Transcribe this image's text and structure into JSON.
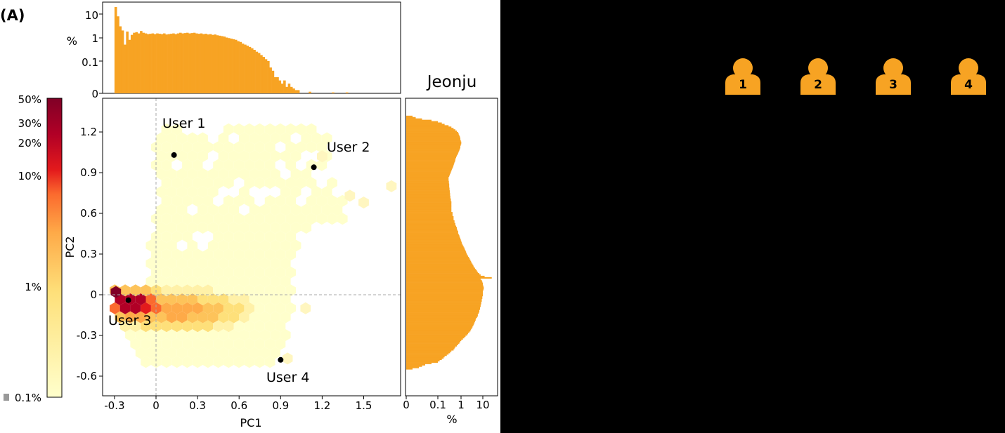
{
  "panel_label": "(A)",
  "city": "Jeonju",
  "colors": {
    "hist": "#f7a323",
    "user_icon": "#f7a323",
    "cmap": [
      "#ffffcc",
      "#fee07a",
      "#feaa48",
      "#fb6a2e",
      "#e31a1c",
      "#b10026",
      "#800026"
    ]
  },
  "icons": [
    "user-icon",
    "user-icon",
    "user-icon",
    "user-icon"
  ],
  "user_icons": [
    "1",
    "2",
    "3",
    "4"
  ],
  "chart_data": [
    {
      "type": "hexbin",
      "xlabel": "PC1",
      "ylabel": "PC2",
      "xlim": [
        -0.37,
        1.8
      ],
      "ylim": [
        -0.75,
        1.43
      ],
      "xticks": [
        "-0.3",
        "0",
        "0.3",
        "0.6",
        "0.9",
        "1.2",
        "1.5"
      ],
      "yticks": [
        "-0.6",
        "-0.3",
        "0",
        "0.3",
        "0.6",
        "0.9",
        "1.2"
      ],
      "reference_lines": {
        "x": 0,
        "y": 0
      },
      "users": [
        {
          "name": "User 1",
          "x": 0.13,
          "y": 1.03
        },
        {
          "name": "User 2",
          "x": 1.14,
          "y": 0.94
        },
        {
          "name": "User 3",
          "x": -0.2,
          "y": -0.04
        },
        {
          "name": "User 4",
          "x": 0.9,
          "y": -0.48
        }
      ],
      "colorbar": {
        "scale": "log",
        "ticks": [
          "50%",
          "30%",
          "20%",
          "10%",
          "1%",
          "0.1%"
        ]
      }
    },
    {
      "type": "histogram",
      "orientation": "vertical",
      "axis": "PC1",
      "ylabel": "%",
      "yscale": "symlog",
      "yticks": [
        "0",
        "0.1",
        "1",
        "10"
      ],
      "x_start": -0.3,
      "bin_width": 0.0167,
      "values": [
        20,
        8,
        3,
        2,
        0.5,
        1.8,
        0.8,
        1.3,
        1.6,
        1.7,
        1.5,
        1.9,
        1.6,
        1.5,
        1.4,
        1.45,
        1.5,
        1.4,
        1.5,
        1.45,
        1.4,
        1.5,
        1.35,
        1.4,
        1.45,
        1.5,
        1.4,
        1.5,
        1.6,
        1.5,
        1.55,
        1.6,
        1.5,
        1.55,
        1.6,
        1.5,
        1.45,
        1.5,
        1.4,
        1.45,
        1.35,
        1.4,
        1.3,
        1.35,
        1.25,
        1.2,
        1.15,
        1.1,
        1.0,
        0.95,
        0.9,
        0.85,
        0.8,
        0.7,
        0.65,
        0.55,
        0.5,
        0.45,
        0.4,
        0.35,
        0.3,
        0.25,
        0.22,
        0.18,
        0.15,
        0.12,
        0.1,
        0.08,
        0.07,
        0.05,
        0.05,
        0.04,
        0.03,
        0.04,
        0.02,
        0.03,
        0.02,
        0.015,
        0.01,
        0.01,
        0,
        0,
        0,
        0,
        0.005,
        0,
        0,
        0,
        0,
        0,
        0,
        0,
        0,
        0,
        0.003,
        0,
        0,
        0,
        0,
        0,
        0.003
      ]
    },
    {
      "type": "histogram",
      "orientation": "horizontal",
      "axis": "PC2",
      "xlabel": "%",
      "xscale": "symlog",
      "xticks": [
        "0",
        "0.1",
        "1",
        "10"
      ],
      "y_start": -0.55,
      "bin_width": 0.01,
      "values": [
        0.02,
        0.04,
        0.05,
        0.06,
        0.08,
        0.1,
        0.12,
        0.15,
        0.18,
        0.2,
        0.25,
        0.3,
        0.35,
        0.4,
        0.5,
        0.55,
        0.6,
        0.7,
        0.8,
        0.9,
        1.0,
        1.1,
        1.3,
        1.5,
        1.7,
        2.0,
        2.2,
        2.5,
        2.8,
        3.0,
        3.3,
        3.5,
        3.8,
        4.0,
        4.3,
        4.5,
        4.8,
        5.0,
        5.5,
        6.0,
        6.0,
        6.5,
        7.0,
        7.0,
        7.5,
        7.5,
        8.0,
        8.0,
        8.5,
        8.5,
        9.0,
        9.0,
        9.5,
        9.5,
        10.0,
        10.0,
        10.0,
        10.0,
        10.5,
        11.0,
        11.0,
        10.5,
        10.0,
        10.0,
        9.5,
        9.0,
        8.0,
        25.0,
        12.0,
        8.0,
        7.0,
        6.0,
        5.5,
        5.0,
        4.5,
        4.0,
        3.8,
        3.5,
        3.2,
        3.0,
        2.8,
        2.6,
        2.4,
        2.2,
        2.0,
        1.9,
        1.8,
        1.7,
        1.6,
        1.5,
        1.4,
        1.3,
        1.2,
        1.15,
        1.1,
        1.05,
        1.0,
        0.95,
        0.9,
        0.85,
        0.8,
        0.8,
        0.75,
        0.7,
        0.7,
        0.65,
        0.6,
        0.6,
        0.55,
        0.55,
        0.5,
        0.5,
        0.5,
        0.45,
        0.45,
        0.45,
        0.4,
        0.4,
        0.4,
        0.4,
        0.4,
        0.4,
        0.4,
        0.4,
        0.38,
        0.38,
        0.36,
        0.36,
        0.35,
        0.35,
        0.34,
        0.34,
        0.33,
        0.33,
        0.32,
        0.32,
        0.32,
        0.31,
        0.31,
        0.3,
        0.3,
        0.3,
        0.32,
        0.34,
        0.36,
        0.38,
        0.4,
        0.42,
        0.45,
        0.48,
        0.5,
        0.52,
        0.55,
        0.58,
        0.6,
        0.62,
        0.65,
        0.7,
        0.75,
        0.8,
        0.85,
        0.9,
        0.95,
        1.0,
        1.0,
        1.05,
        1.1,
        1.1,
        1.05,
        1.0,
        1.0,
        0.95,
        0.9,
        0.85,
        0.8,
        0.7,
        0.6,
        0.5,
        0.4,
        0.3,
        0.2,
        0.15,
        0.1,
        0.08,
        0.05,
        0.03,
        0.02
      ]
    }
  ]
}
